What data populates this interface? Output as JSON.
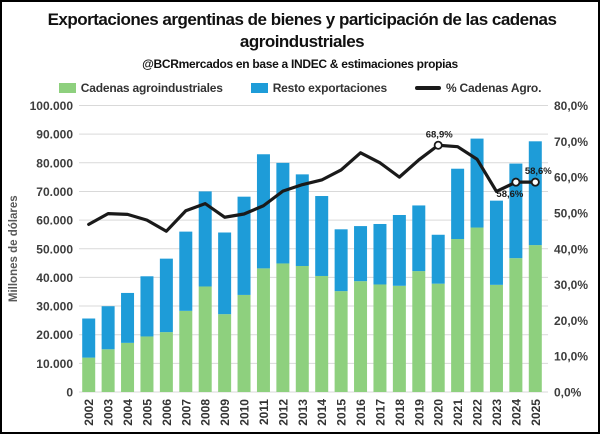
{
  "header": {
    "title": "Exportaciones argentinas de bienes y participación de las cadenas agroindustriales",
    "subtitle": "@BCRmercados en base a INDEC & estimaciones propias"
  },
  "legend": [
    {
      "label": "Cadenas agroindustriales",
      "color": "#8ED07E",
      "type": "box"
    },
    {
      "label": "Resto exportaciones",
      "color": "#1E9CD8",
      "type": "box"
    },
    {
      "label": "% Cadenas Agro.",
      "color": "#1a1a1a",
      "type": "line"
    }
  ],
  "chart_data": {
    "type": "combo_stacked_bar_line",
    "categories": [
      "2002",
      "2003",
      "2004",
      "2005",
      "2006",
      "2007",
      "2008",
      "2009",
      "2010",
      "2011",
      "2012",
      "2013",
      "2014",
      "2015",
      "2016",
      "2017",
      "2018",
      "2019",
      "2020",
      "2021",
      "2022",
      "2023",
      "2024",
      "2025"
    ],
    "series": [
      {
        "name": "Cadenas agroindustriales",
        "type": "bar",
        "stack": "total",
        "axis": "left",
        "color": "#8ED07E",
        "values": [
          12004,
          14910,
          17150,
          19386,
          20899,
          28326,
          36830,
          27168,
          33882,
          43150,
          44870,
          43983,
          40495,
          35206,
          38683,
          37533,
          37069,
          42195,
          37815,
          53385,
          57401,
          37402,
          46717,
          51275
        ]
      },
      {
        "name": "Resto exportaciones",
        "type": "bar",
        "stack": "total",
        "axis": "left",
        "color": "#1E9CD8",
        "values": [
          13646,
          15029,
          17426,
          21001,
          25647,
          27654,
          33189,
          28504,
          34292,
          39831,
          35112,
          31980,
          27909,
          21578,
          19226,
          21112,
          24713,
          22921,
          17069,
          24549,
          31045,
          29388,
          33004,
          36225
        ]
      },
      {
        "name": "% Cadenas Agro.",
        "type": "line",
        "axis": "right",
        "color": "#1a1a1a",
        "values": [
          46.8,
          49.8,
          49.6,
          48.0,
          44.9,
          50.6,
          52.6,
          48.8,
          49.7,
          52.0,
          56.1,
          57.9,
          59.2,
          62.0,
          66.8,
          64.0,
          60.0,
          64.8,
          68.9,
          68.5,
          65.0,
          56.0,
          58.6,
          58.6
        ]
      }
    ],
    "left_axis": {
      "title": "Millones de dólares",
      "min": 0,
      "max": 100000,
      "step": 10000,
      "tick_labels": [
        "100.000",
        "90.000",
        "80.000",
        "70.000",
        "60.000",
        "50.000",
        "40.000",
        "30.000",
        "20.000",
        "10.000",
        "0"
      ]
    },
    "right_axis": {
      "min": 0,
      "max": 80,
      "step": 10,
      "tick_labels": [
        "80,0%",
        "70,0%",
        "60,0%",
        "50,0%",
        "40,0%",
        "30,0%",
        "20,0%",
        "10,0%",
        "0,0%"
      ]
    },
    "point_labels": [
      {
        "year": "2020",
        "text": "68,9%",
        "position": "above",
        "dx": 1
      },
      {
        "year": "2024",
        "text": "58,6%",
        "position": "below",
        "dx": -6
      },
      {
        "year": "2025",
        "text": "58,6%",
        "position": "above",
        "dx": 3
      }
    ],
    "grid": true,
    "gridline_color": "#d9d9d9",
    "legend_position": "top"
  }
}
